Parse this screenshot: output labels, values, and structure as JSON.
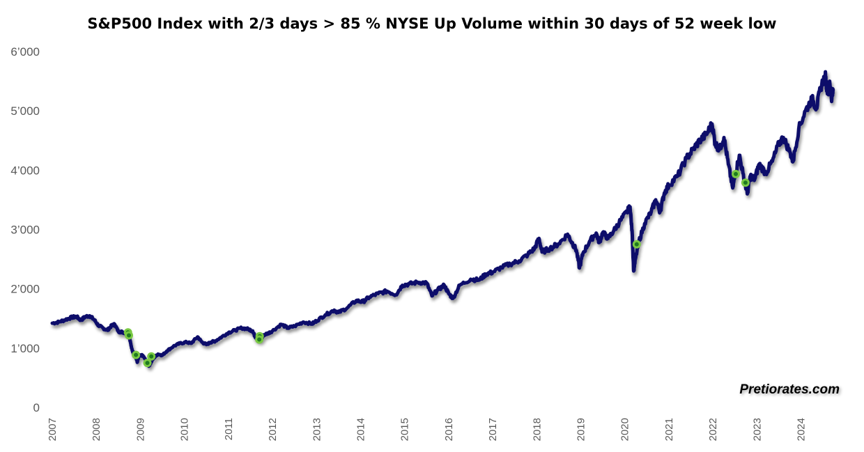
{
  "chart_data": {
    "type": "line",
    "title": "S&P500 Index with 2/3 days > 85 % NYSE Up Volume within 30 days of 52 week low",
    "watermark": "Pretiorates.com",
    "xlabel": "",
    "ylabel": "",
    "xlim": [
      2007.0,
      2024.75
    ],
    "ylim": [
      0,
      6000
    ],
    "grid": false,
    "y_ticks": [
      0,
      1000,
      2000,
      3000,
      4000,
      5000,
      6000
    ],
    "y_tick_labels": [
      "0",
      "1’000",
      "2’000",
      "3’000",
      "4’000",
      "5’000",
      "6’000"
    ],
    "x_ticks": [
      2007,
      2008,
      2009,
      2010,
      2011,
      2012,
      2013,
      2014,
      2015,
      2016,
      2017,
      2018,
      2019,
      2020,
      2021,
      2022,
      2023,
      2024
    ],
    "x_tick_labels": [
      "2007",
      "2008",
      "2009",
      "2010",
      "2011",
      "2012",
      "2013",
      "2014",
      "2015",
      "2016",
      "2017",
      "2018",
      "2019",
      "2020",
      "2021",
      "2022",
      "2023",
      "2024"
    ],
    "series": [
      {
        "name": "S&P500 Index",
        "color": "#0d0d6b",
        "points": [
          [
            2007.0,
            1420
          ],
          [
            2007.15,
            1440
          ],
          [
            2007.3,
            1480
          ],
          [
            2007.45,
            1520
          ],
          [
            2007.55,
            1530
          ],
          [
            2007.65,
            1470
          ],
          [
            2007.75,
            1530
          ],
          [
            2007.85,
            1545
          ],
          [
            2007.95,
            1480
          ],
          [
            2008.05,
            1380
          ],
          [
            2008.15,
            1340
          ],
          [
            2008.25,
            1300
          ],
          [
            2008.35,
            1380
          ],
          [
            2008.42,
            1400
          ],
          [
            2008.5,
            1280
          ],
          [
            2008.6,
            1270
          ],
          [
            2008.7,
            1250
          ],
          [
            2008.75,
            1200
          ],
          [
            2008.8,
            1000
          ],
          [
            2008.85,
            900
          ],
          [
            2008.9,
            850
          ],
          [
            2008.93,
            760
          ],
          [
            2008.97,
            870
          ],
          [
            2009.05,
            880
          ],
          [
            2009.12,
            800
          ],
          [
            2009.17,
            720
          ],
          [
            2009.2,
            700
          ],
          [
            2009.3,
            830
          ],
          [
            2009.4,
            900
          ],
          [
            2009.5,
            880
          ],
          [
            2009.6,
            950
          ],
          [
            2009.75,
            1030
          ],
          [
            2009.9,
            1080
          ],
          [
            2010.05,
            1100
          ],
          [
            2010.15,
            1080
          ],
          [
            2010.3,
            1190
          ],
          [
            2010.4,
            1100
          ],
          [
            2010.5,
            1060
          ],
          [
            2010.6,
            1100
          ],
          [
            2010.7,
            1120
          ],
          [
            2010.85,
            1190
          ],
          [
            2011.0,
            1260
          ],
          [
            2011.15,
            1300
          ],
          [
            2011.3,
            1340
          ],
          [
            2011.45,
            1320
          ],
          [
            2011.55,
            1290
          ],
          [
            2011.6,
            1200
          ],
          [
            2011.67,
            1140
          ],
          [
            2011.73,
            1130
          ],
          [
            2011.8,
            1220
          ],
          [
            2011.9,
            1250
          ],
          [
            2012.0,
            1290
          ],
          [
            2012.2,
            1400
          ],
          [
            2012.35,
            1340
          ],
          [
            2012.5,
            1370
          ],
          [
            2012.7,
            1440
          ],
          [
            2012.9,
            1410
          ],
          [
            2013.0,
            1460
          ],
          [
            2013.2,
            1560
          ],
          [
            2013.4,
            1640
          ],
          [
            2013.5,
            1600
          ],
          [
            2013.7,
            1680
          ],
          [
            2013.9,
            1800
          ],
          [
            2014.05,
            1780
          ],
          [
            2014.2,
            1860
          ],
          [
            2014.4,
            1920
          ],
          [
            2014.6,
            1960
          ],
          [
            2014.8,
            1900
          ],
          [
            2014.95,
            2060
          ],
          [
            2015.1,
            2080
          ],
          [
            2015.3,
            2110
          ],
          [
            2015.5,
            2100
          ],
          [
            2015.62,
            1880
          ],
          [
            2015.75,
            1980
          ],
          [
            2015.9,
            2060
          ],
          [
            2016.0,
            1920
          ],
          [
            2016.1,
            1840
          ],
          [
            2016.25,
            2060
          ],
          [
            2016.5,
            2160
          ],
          [
            2016.7,
            2150
          ],
          [
            2016.85,
            2250
          ],
          [
            2017.0,
            2280
          ],
          [
            2017.2,
            2360
          ],
          [
            2017.4,
            2420
          ],
          [
            2017.6,
            2470
          ],
          [
            2017.8,
            2580
          ],
          [
            2017.95,
            2680
          ],
          [
            2018.05,
            2850
          ],
          [
            2018.12,
            2620
          ],
          [
            2018.3,
            2680
          ],
          [
            2018.5,
            2760
          ],
          [
            2018.7,
            2920
          ],
          [
            2018.8,
            2780
          ],
          [
            2018.9,
            2650
          ],
          [
            2018.97,
            2350
          ],
          [
            2019.05,
            2600
          ],
          [
            2019.2,
            2800
          ],
          [
            2019.35,
            2940
          ],
          [
            2019.42,
            2780
          ],
          [
            2019.5,
            2950
          ],
          [
            2019.62,
            2850
          ],
          [
            2019.75,
            2980
          ],
          [
            2019.9,
            3150
          ],
          [
            2020.05,
            3300
          ],
          [
            2020.12,
            3380
          ],
          [
            2020.17,
            2900
          ],
          [
            2020.2,
            2300
          ],
          [
            2020.24,
            2500
          ],
          [
            2020.32,
            2800
          ],
          [
            2020.45,
            3100
          ],
          [
            2020.6,
            3300
          ],
          [
            2020.7,
            3500
          ],
          [
            2020.8,
            3300
          ],
          [
            2020.9,
            3620
          ],
          [
            2021.0,
            3750
          ],
          [
            2021.2,
            3900
          ],
          [
            2021.4,
            4200
          ],
          [
            2021.55,
            4350
          ],
          [
            2021.7,
            4500
          ],
          [
            2021.85,
            4600
          ],
          [
            2021.98,
            4780
          ],
          [
            2022.05,
            4450
          ],
          [
            2022.15,
            4350
          ],
          [
            2022.25,
            4550
          ],
          [
            2022.35,
            4100
          ],
          [
            2022.45,
            3700
          ],
          [
            2022.5,
            3900
          ],
          [
            2022.6,
            4250
          ],
          [
            2022.68,
            3950
          ],
          [
            2022.78,
            3600
          ],
          [
            2022.85,
            3900
          ],
          [
            2022.95,
            3850
          ],
          [
            2023.05,
            4100
          ],
          [
            2023.2,
            3950
          ],
          [
            2023.35,
            4150
          ],
          [
            2023.5,
            4450
          ],
          [
            2023.6,
            4550
          ],
          [
            2023.75,
            4300
          ],
          [
            2023.82,
            4150
          ],
          [
            2023.95,
            4700
          ],
          [
            2024.1,
            5000
          ],
          [
            2024.25,
            5200
          ],
          [
            2024.35,
            5050
          ],
          [
            2024.45,
            5400
          ],
          [
            2024.55,
            5600
          ],
          [
            2024.58,
            5420
          ],
          [
            2024.62,
            5300
          ],
          [
            2024.65,
            5500
          ],
          [
            2024.7,
            5200
          ],
          [
            2024.73,
            5350
          ]
        ]
      }
    ],
    "signals": [
      {
        "x": 2008.72,
        "y": 1265
      },
      {
        "x": 2008.74,
        "y": 1215
      },
      {
        "x": 2008.9,
        "y": 885
      },
      {
        "x": 2009.16,
        "y": 750
      },
      {
        "x": 2009.25,
        "y": 860
      },
      {
        "x": 2011.71,
        "y": 1200
      },
      {
        "x": 2011.7,
        "y": 1145
      },
      {
        "x": 2020.27,
        "y": 2750
      },
      {
        "x": 2022.52,
        "y": 3935
      },
      {
        "x": 2022.74,
        "y": 3790
      }
    ],
    "signal_color": "#7ac943"
  }
}
